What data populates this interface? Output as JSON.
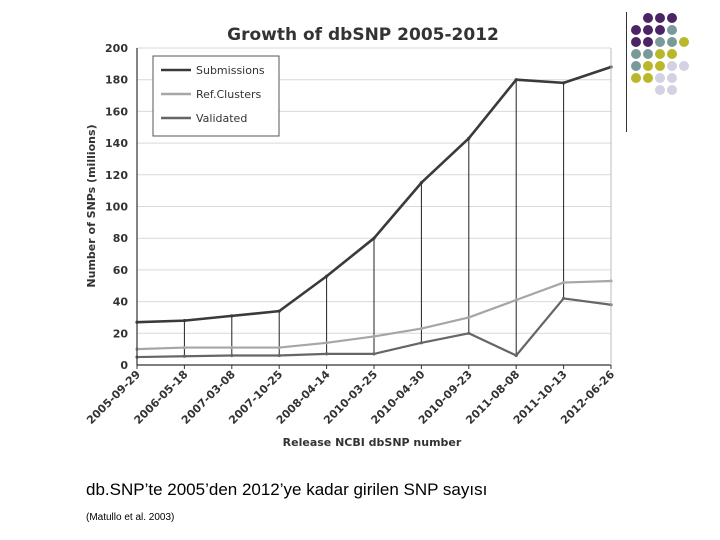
{
  "chart_data": {
    "type": "line",
    "title": "Growth of dbSNP 2005-2012",
    "xlabel": "Release NCBI dbSNP number",
    "ylabel": "Number of SNPs (millions)",
    "ylim": [
      0,
      200
    ],
    "yticks": [
      0,
      20,
      40,
      60,
      80,
      100,
      120,
      140,
      160,
      180,
      200
    ],
    "categories": [
      "2005-09-29",
      "2006-05-18",
      "2007-03-08",
      "2007-10-25",
      "2008-04-14",
      "2010-03-25",
      "2010-04-30",
      "2010-09-23",
      "2011-08-08",
      "2011-10-13",
      "2012-06-26"
    ],
    "grid": true,
    "legend_position": "top-left",
    "series": [
      {
        "name": "Submissions",
        "color": "#3a3a3a",
        "values": [
          27,
          28,
          31,
          34,
          56,
          80,
          115,
          143,
          180,
          178,
          188
        ]
      },
      {
        "name": "Ref.Clusters",
        "color": "#a6a6a6",
        "values": [
          10,
          11,
          11,
          11,
          14,
          18,
          23,
          30,
          41,
          52,
          53
        ]
      },
      {
        "name": "Validated",
        "color": "#666666",
        "values": [
          5,
          5.5,
          6,
          6,
          7,
          7,
          14,
          20,
          6,
          42,
          38
        ]
      }
    ]
  },
  "caption": "db.SNP’te 2005’den 2012’ye kadar girilen SNP sayısı",
  "source": "(Matullo et al. 2003)",
  "decor": {
    "colors": {
      "purple": "#4b2466",
      "teal": "#7a9a9a",
      "olive": "#b8b82a",
      "lavender": "#d2d2e2"
    }
  }
}
